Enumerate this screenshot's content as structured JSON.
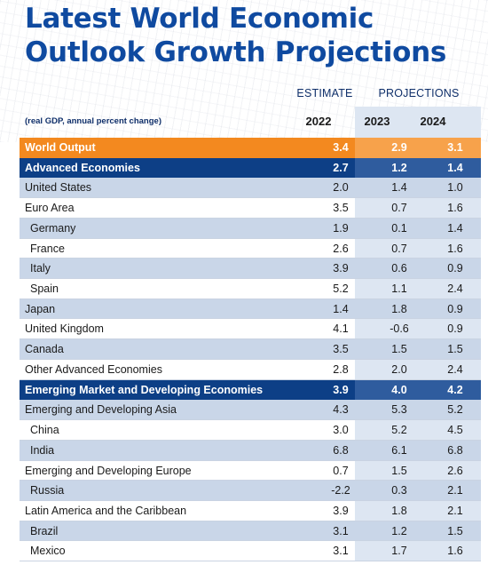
{
  "chart_data": {
    "type": "table",
    "title_line1": "Latest World Economic",
    "title_line2": "Outlook Growth Projections",
    "group_headers": {
      "estimate": "ESTIMATE",
      "projections": "PROJECTIONS"
    },
    "units": "(real GDP, annual percent change)",
    "columns": [
      "2022",
      "2023",
      "2024"
    ],
    "rows": [
      {
        "label": "World Output",
        "values": [
          "3.4",
          "2.9",
          "3.1"
        ],
        "style": "orange"
      },
      {
        "label": "Advanced Economies",
        "values": [
          "2.7",
          "1.2",
          "1.4"
        ],
        "style": "navy"
      },
      {
        "label": "United States",
        "values": [
          "2.0",
          "1.4",
          "1.0"
        ],
        "style": "shade"
      },
      {
        "label": "Euro Area",
        "values": [
          "3.5",
          "0.7",
          "1.6"
        ],
        "style": "plain"
      },
      {
        "label": "Germany",
        "values": [
          "1.9",
          "0.1",
          "1.4"
        ],
        "style": "shade",
        "indent": true
      },
      {
        "label": "France",
        "values": [
          "2.6",
          "0.7",
          "1.6"
        ],
        "style": "plain",
        "indent": true
      },
      {
        "label": "Italy",
        "values": [
          "3.9",
          "0.6",
          "0.9"
        ],
        "style": "shade",
        "indent": true
      },
      {
        "label": "Spain",
        "values": [
          "5.2",
          "1.1",
          "2.4"
        ],
        "style": "plain",
        "indent": true
      },
      {
        "label": "Japan",
        "values": [
          "1.4",
          "1.8",
          "0.9"
        ],
        "style": "shade"
      },
      {
        "label": "United Kingdom",
        "values": [
          "4.1",
          "-0.6",
          "0.9"
        ],
        "style": "plain"
      },
      {
        "label": "Canada",
        "values": [
          "3.5",
          "1.5",
          "1.5"
        ],
        "style": "shade"
      },
      {
        "label": "Other Advanced Economies",
        "values": [
          "2.8",
          "2.0",
          "2.4"
        ],
        "style": "plain"
      },
      {
        "label": "Emerging Market and Developing Economies",
        "values": [
          "3.9",
          "4.0",
          "4.2"
        ],
        "style": "navy"
      },
      {
        "label": "Emerging and Developing Asia",
        "values": [
          "4.3",
          "5.3",
          "5.2"
        ],
        "style": "shade"
      },
      {
        "label": "China",
        "values": [
          "3.0",
          "5.2",
          "4.5"
        ],
        "style": "plain",
        "indent": true
      },
      {
        "label": "India",
        "values": [
          "6.8",
          "6.1",
          "6.8"
        ],
        "style": "shade",
        "indent": true
      },
      {
        "label": "Emerging and Developing Europe",
        "values": [
          "0.7",
          "1.5",
          "2.6"
        ],
        "style": "plain"
      },
      {
        "label": "Russia",
        "values": [
          "-2.2",
          "0.3",
          "2.1"
        ],
        "style": "shade",
        "indent": true
      },
      {
        "label": "Latin America and the Caribbean",
        "values": [
          "3.9",
          "1.8",
          "2.1"
        ],
        "style": "plain"
      },
      {
        "label": "Brazil",
        "values": [
          "3.1",
          "1.2",
          "1.5"
        ],
        "style": "shade",
        "indent": true
      },
      {
        "label": "Mexico",
        "values": [
          "3.1",
          "1.7",
          "1.6"
        ],
        "style": "plain",
        "indent": true
      }
    ],
    "colors": {
      "title": "#0f4aa0",
      "highlight_orange": "#f3891f",
      "highlight_navy": "#0d3f86",
      "row_shade": "#c9d6e8",
      "projection_band": "#dde6f2"
    }
  }
}
